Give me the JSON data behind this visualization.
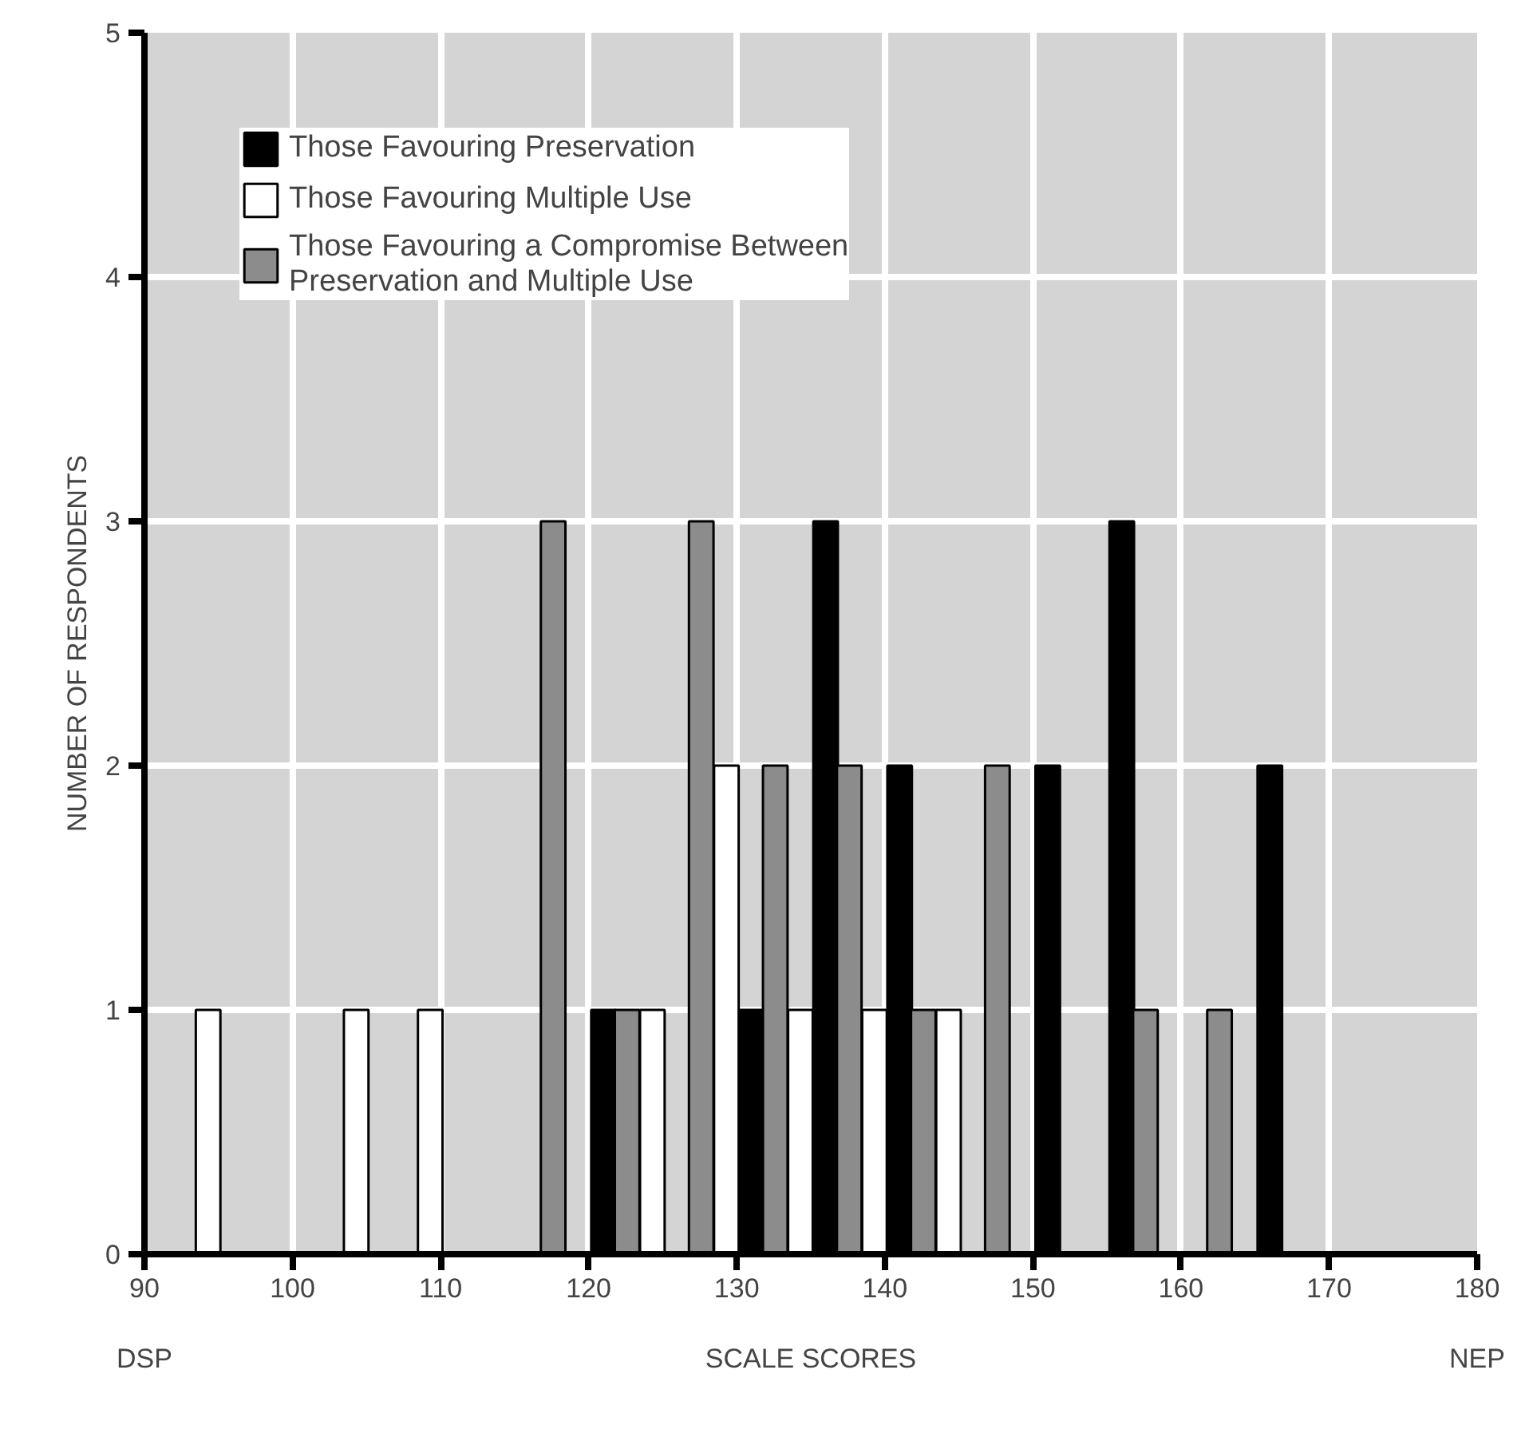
{
  "chart_data": {
    "type": "bar",
    "xlabel": "SCALE SCORES",
    "ylabel": "NUMBER OF RESPONDENTS",
    "xlim": [
      90,
      180
    ],
    "xticks": [
      90,
      100,
      110,
      120,
      130,
      140,
      150,
      160,
      170,
      180
    ],
    "ylim": [
      0,
      5
    ],
    "yticks": [
      0,
      1,
      2,
      3,
      4,
      5
    ],
    "grid": true,
    "legend": "top left",
    "series": [
      {
        "name": "Those Favouring Preservation",
        "color": "#000000",
        "x": [
          121,
          131,
          136,
          141,
          151,
          156,
          166
        ],
        "values": [
          1,
          1,
          3,
          2,
          2,
          3,
          2
        ]
      },
      {
        "name": "Those Favouring Multiple Use",
        "color": "#ffffff",
        "x": [
          94.3,
          104.3,
          109.3,
          124.3,
          129.3,
          134.3,
          139.3,
          144.3
        ],
        "values": [
          1,
          1,
          1,
          1,
          2,
          1,
          1,
          1
        ]
      },
      {
        "name": "Those Favouring a Compromise Between\nPreservation and Multiple Use",
        "color": "#8c8c8c",
        "x": [
          117.6,
          122.6,
          127.6,
          132.6,
          137.6,
          142.6,
          147.6,
          157.6,
          162.6
        ],
        "values": [
          3,
          1,
          3,
          2,
          2,
          1,
          2,
          1,
          1
        ]
      }
    ],
    "annotations": [
      "DSP",
      "NEP"
    ]
  }
}
